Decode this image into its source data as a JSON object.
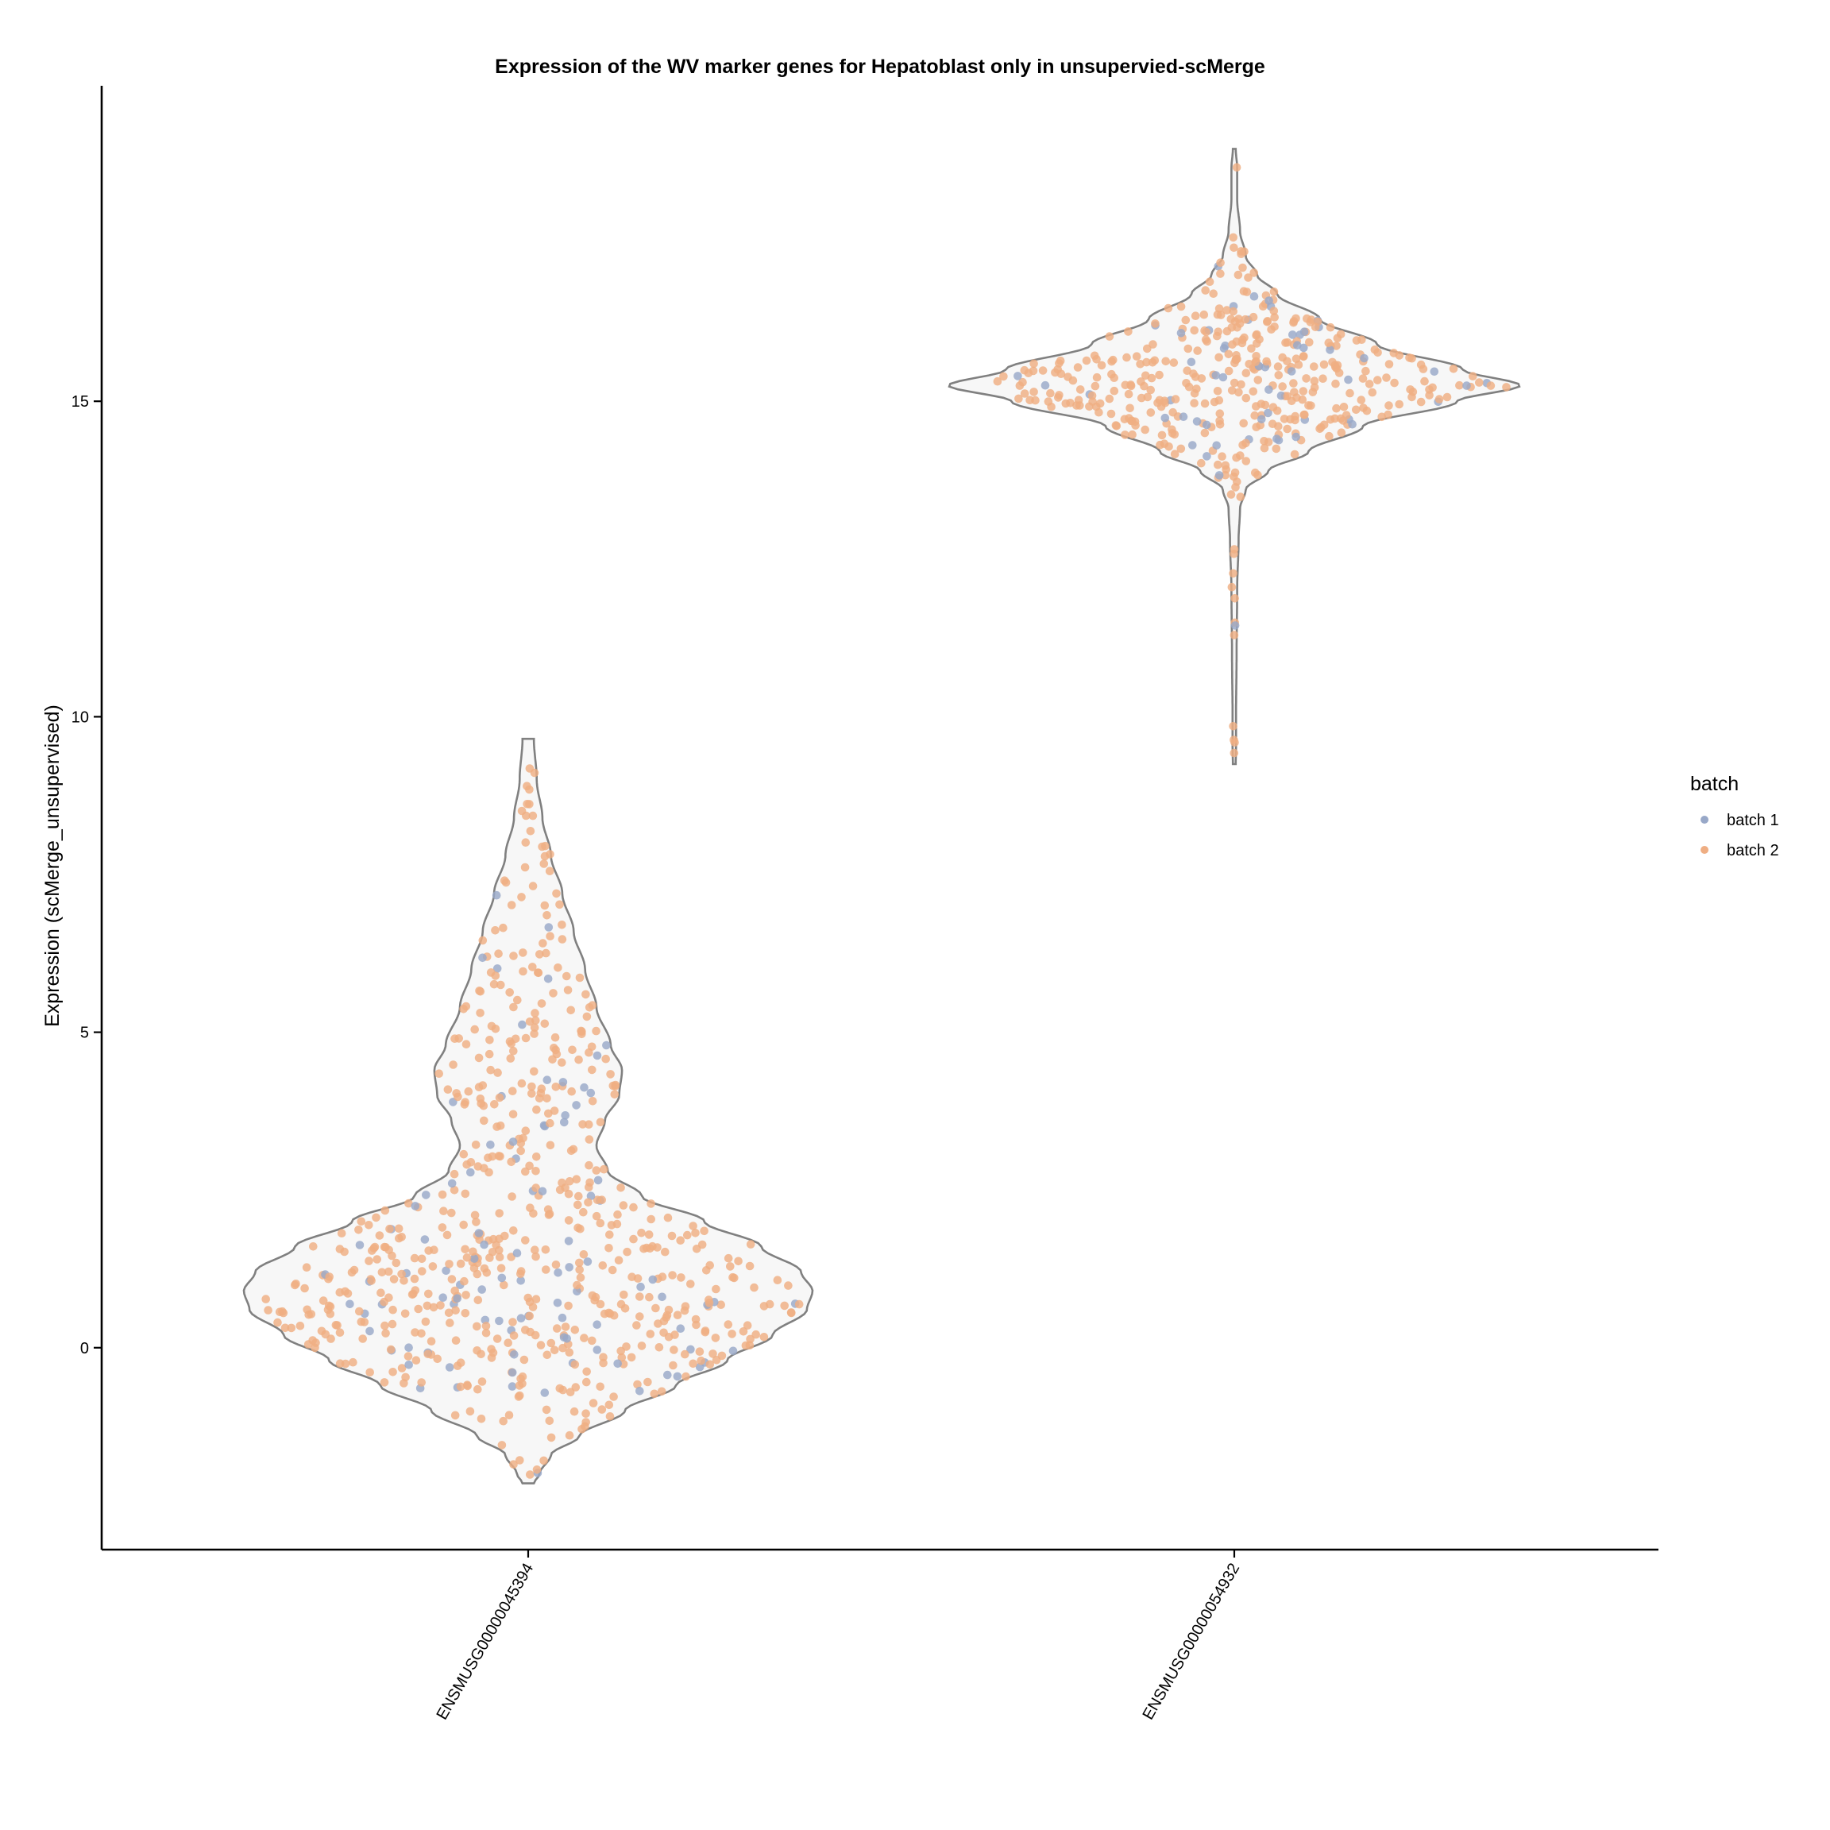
{
  "chart_data": {
    "type": "violin",
    "title": "Expression of the WV marker genes for Hepatoblast only in unsupervied-scMerge",
    "xlabel": "",
    "ylabel": "Expression (scMerge_unsupervised)",
    "categories": [
      "ENSMUSG00000045394",
      "ENSMUSG00000054932"
    ],
    "y_ticks": [
      0,
      5,
      10,
      15
    ],
    "ylim": [
      -3.2,
      20
    ],
    "legend": {
      "title": "batch",
      "placement": "right",
      "entries": [
        {
          "name": "batch 1",
          "color": "#98A8C8"
        },
        {
          "name": "batch 2",
          "color": "#EFAE83"
        }
      ]
    },
    "colors": {
      "violin_outline": "#808080",
      "violin_fill": "#F7F7F7",
      "axis": "#000000"
    },
    "series": [
      {
        "category": "ENSMUSG00000045394",
        "range": [
          -2.15,
          9.65
        ],
        "n_points": 700,
        "batch1_fraction": 0.13,
        "density": [
          [
            -2.15,
            0.02
          ],
          [
            -2.0,
            0.04
          ],
          [
            -1.7,
            0.08
          ],
          [
            -1.4,
            0.18
          ],
          [
            -1.0,
            0.34
          ],
          [
            -0.6,
            0.52
          ],
          [
            -0.2,
            0.7
          ],
          [
            0.2,
            0.86
          ],
          [
            0.6,
            0.98
          ],
          [
            0.9,
            1.0
          ],
          [
            1.2,
            0.96
          ],
          [
            1.6,
            0.82
          ],
          [
            2.0,
            0.62
          ],
          [
            2.4,
            0.4
          ],
          [
            2.8,
            0.28
          ],
          [
            3.2,
            0.24
          ],
          [
            3.6,
            0.27
          ],
          [
            4.0,
            0.32
          ],
          [
            4.4,
            0.33
          ],
          [
            4.8,
            0.29
          ],
          [
            5.4,
            0.24
          ],
          [
            6.0,
            0.2
          ],
          [
            6.6,
            0.16
          ],
          [
            7.2,
            0.12
          ],
          [
            7.8,
            0.08
          ],
          [
            8.4,
            0.05
          ],
          [
            9.0,
            0.03
          ],
          [
            9.65,
            0.02
          ]
        ]
      },
      {
        "category": "ENSMUSG00000054932",
        "range": [
          9.25,
          19.0
        ],
        "n_points": 450,
        "batch1_fraction": 0.12,
        "density": [
          [
            9.25,
            0.005
          ],
          [
            9.5,
            0.006
          ],
          [
            10.0,
            0.006
          ],
          [
            11.0,
            0.008
          ],
          [
            12.0,
            0.01
          ],
          [
            12.8,
            0.015
          ],
          [
            13.3,
            0.02
          ],
          [
            13.6,
            0.04
          ],
          [
            13.9,
            0.12
          ],
          [
            14.2,
            0.26
          ],
          [
            14.6,
            0.45
          ],
          [
            15.0,
            0.78
          ],
          [
            15.25,
            1.0
          ],
          [
            15.5,
            0.8
          ],
          [
            15.9,
            0.5
          ],
          [
            16.3,
            0.3
          ],
          [
            16.7,
            0.15
          ],
          [
            17.0,
            0.08
          ],
          [
            17.3,
            0.04
          ],
          [
            17.7,
            0.02
          ],
          [
            18.2,
            0.01
          ],
          [
            18.7,
            0.01
          ],
          [
            19.0,
            0.005
          ]
        ]
      }
    ]
  }
}
